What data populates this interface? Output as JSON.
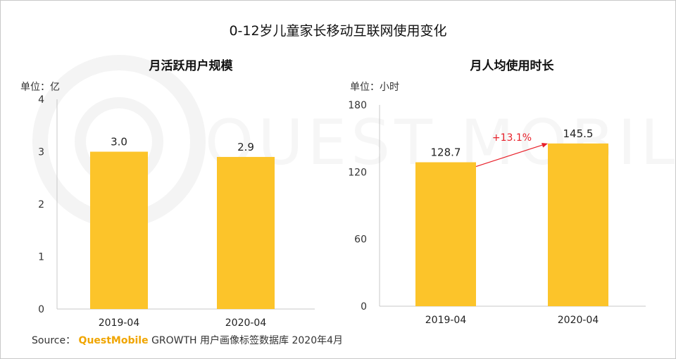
{
  "title": "0-12岁儿童家长移动互联网使用变化",
  "source": {
    "prefix": "Source：",
    "brand": "QuestMobile",
    "suffix": "GROWTH 用户画像标签数据库 2020年4月"
  },
  "watermark_text": "QUEST MOBILE",
  "colors": {
    "bar": "#FCC42A",
    "axis": "#c8c8c8",
    "arrow": "#e8202a"
  },
  "chart_data": [
    {
      "type": "bar",
      "title": "月活跃用户规模",
      "unit_label": "单位：亿",
      "categories": [
        "2019-04",
        "2020-04"
      ],
      "values": [
        3.0,
        2.9
      ],
      "value_labels": [
        "3.0",
        "2.9"
      ],
      "ylim": [
        0,
        4
      ],
      "yticks": [
        0,
        1,
        2,
        3,
        4
      ],
      "ytick_labels": [
        "0",
        "1",
        "2",
        "3",
        "4"
      ],
      "xlabel": "",
      "ylabel": ""
    },
    {
      "type": "bar",
      "title": "月人均使用时长",
      "unit_label": "单位：小时",
      "categories": [
        "2019-04",
        "2020-04"
      ],
      "values": [
        128.7,
        145.5
      ],
      "value_labels": [
        "128.7",
        "145.5"
      ],
      "ylim": [
        0,
        180
      ],
      "yticks": [
        0,
        60,
        120,
        180
      ],
      "ytick_labels": [
        "0",
        "60",
        "120",
        "180"
      ],
      "annotation": "+13.1%",
      "xlabel": "",
      "ylabel": ""
    }
  ]
}
